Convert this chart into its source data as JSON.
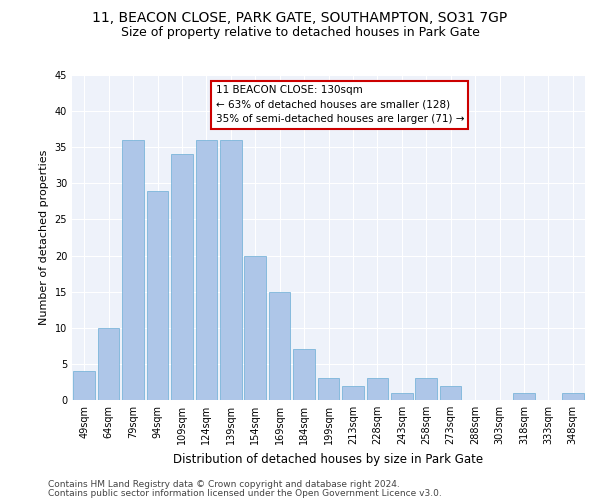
{
  "title_line1": "11, BEACON CLOSE, PARK GATE, SOUTHAMPTON, SO31 7GP",
  "title_line2": "Size of property relative to detached houses in Park Gate",
  "xlabel": "Distribution of detached houses by size in Park Gate",
  "ylabel": "Number of detached properties",
  "categories": [
    "49sqm",
    "64sqm",
    "79sqm",
    "94sqm",
    "109sqm",
    "124sqm",
    "139sqm",
    "154sqm",
    "169sqm",
    "184sqm",
    "199sqm",
    "213sqm",
    "228sqm",
    "243sqm",
    "258sqm",
    "273sqm",
    "288sqm",
    "303sqm",
    "318sqm",
    "333sqm",
    "348sqm"
  ],
  "values": [
    4,
    10,
    36,
    29,
    34,
    36,
    36,
    20,
    15,
    7,
    3,
    2,
    3,
    1,
    3,
    2,
    0,
    0,
    1,
    0,
    1
  ],
  "bar_color": "#aec6e8",
  "bar_edge_color": "#6baed6",
  "annotation_text": "11 BEACON CLOSE: 130sqm\n← 63% of detached houses are smaller (128)\n35% of semi-detached houses are larger (71) →",
  "annotation_box_color": "#ffffff",
  "annotation_box_edge_color": "#cc0000",
  "ylim": [
    0,
    45
  ],
  "yticks": [
    0,
    5,
    10,
    15,
    20,
    25,
    30,
    35,
    40,
    45
  ],
  "background_color": "#eef2fa",
  "footer_line1": "Contains HM Land Registry data © Crown copyright and database right 2024.",
  "footer_line2": "Contains public sector information licensed under the Open Government Licence v3.0.",
  "title_fontsize": 10,
  "subtitle_fontsize": 9,
  "xlabel_fontsize": 8.5,
  "ylabel_fontsize": 8,
  "tick_fontsize": 7,
  "annotation_fontsize": 7.5,
  "footer_fontsize": 6.5
}
